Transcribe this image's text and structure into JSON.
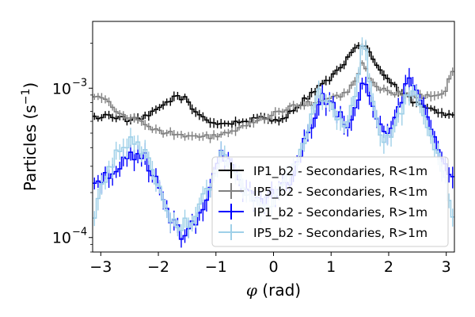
{
  "chart_data": {
    "type": "line",
    "xlabel": "$\\phi$ (rad)",
    "xlabel_display": {
      "symbol": "φ",
      "rest": " (rad)"
    },
    "ylabel": "Particles (s$^{-1}$)",
    "ylabel_display": {
      "base": "Particles (s",
      "sup": "−1",
      "close": ")"
    },
    "xlim": [
      -3.14159,
      3.14159
    ],
    "ylim": [
      8e-05,
      0.0028
    ],
    "yscale": "log",
    "grid": false,
    "legend_position": "lower-right",
    "x_ticks": [
      {
        "value": -3,
        "label": "−3"
      },
      {
        "value": -2,
        "label": "−2"
      },
      {
        "value": -1,
        "label": "−1"
      },
      {
        "value": 0,
        "label": "0"
      },
      {
        "value": 1,
        "label": "1"
      },
      {
        "value": 2,
        "label": "2"
      },
      {
        "value": 3,
        "label": "3"
      }
    ],
    "y_ticks": [
      {
        "value": 0.0001,
        "label": "10",
        "exp": "−4"
      },
      {
        "value": 0.001,
        "label": "10",
        "exp": "−3"
      }
    ],
    "n_bins": 100,
    "series": [
      {
        "name": "IP1_b2 - Secondaries, R<1m",
        "color": "#000000",
        "anchors": [
          [
            -3.14,
            0.00063
          ],
          [
            -2.9,
            0.00066
          ],
          [
            -2.7,
            0.00064
          ],
          [
            -2.5,
            0.00061
          ],
          [
            -2.3,
            0.00062
          ],
          [
            -2.1,
            0.00068
          ],
          [
            -1.9,
            0.00078
          ],
          [
            -1.7,
            0.00088
          ],
          [
            -1.55,
            0.00086
          ],
          [
            -1.4,
            0.00072
          ],
          [
            -1.2,
            0.00063
          ],
          [
            -1.0,
            0.00058
          ],
          [
            -0.8,
            0.00058
          ],
          [
            -0.5,
            0.0006
          ],
          [
            -0.2,
            0.00063
          ],
          [
            0.0,
            0.00061
          ],
          [
            0.2,
            0.00064
          ],
          [
            0.4,
            0.00075
          ],
          [
            0.6,
            0.00088
          ],
          [
            0.8,
            0.00103
          ],
          [
            1.0,
            0.00118
          ],
          [
            1.2,
            0.0014
          ],
          [
            1.35,
            0.0017
          ],
          [
            1.5,
            0.00195
          ],
          [
            1.6,
            0.00195
          ],
          [
            1.75,
            0.0015
          ],
          [
            1.95,
            0.00118
          ],
          [
            2.2,
            0.00094
          ],
          [
            2.5,
            0.00078
          ],
          [
            2.8,
            0.0007
          ],
          [
            3.0,
            0.00067
          ],
          [
            3.14,
            0.00069
          ]
        ]
      },
      {
        "name": "IP5_b2 - Secondaries, R<1m",
        "color": "#808080",
        "anchors": [
          [
            -3.14,
            0.0009
          ],
          [
            -2.95,
            0.00088
          ],
          [
            -2.8,
            0.00075
          ],
          [
            -2.6,
            0.00066
          ],
          [
            -2.4,
            0.00061
          ],
          [
            -2.2,
            0.00057
          ],
          [
            -2.0,
            0.00052
          ],
          [
            -1.8,
            0.0005
          ],
          [
            -1.6,
            0.00048
          ],
          [
            -1.4,
            0.00047
          ],
          [
            -1.2,
            0.00047
          ],
          [
            -1.0,
            0.00048
          ],
          [
            -0.8,
            0.0005
          ],
          [
            -0.5,
            0.00055
          ],
          [
            -0.2,
            0.00062
          ],
          [
            0.1,
            0.0007
          ],
          [
            0.4,
            0.00076
          ],
          [
            0.7,
            0.0008
          ],
          [
            0.9,
            0.00083
          ],
          [
            1.1,
            0.00088
          ],
          [
            1.3,
            0.00095
          ],
          [
            1.45,
            0.00118
          ],
          [
            1.55,
            0.00147
          ],
          [
            1.65,
            0.0012
          ],
          [
            1.8,
            0.00102
          ],
          [
            2.0,
            0.00095
          ],
          [
            2.3,
            0.0009
          ],
          [
            2.6,
            0.00088
          ],
          [
            2.85,
            0.00092
          ],
          [
            3.0,
            0.00095
          ],
          [
            3.05,
            0.00115
          ],
          [
            3.14,
            0.0013
          ]
        ]
      },
      {
        "name": "IP1_b2 - Secondaries, R>1m",
        "color": "#0000ff",
        "anchors": [
          [
            -3.14,
            0.00023
          ],
          [
            -3.0,
            0.00024
          ],
          [
            -2.8,
            0.00026
          ],
          [
            -2.6,
            0.00034
          ],
          [
            -2.4,
            0.00037
          ],
          [
            -2.2,
            0.00033
          ],
          [
            -2.0,
            0.00022
          ],
          [
            -1.8,
            0.00013
          ],
          [
            -1.6,
            0.000105
          ],
          [
            -1.4,
            0.00012
          ],
          [
            -1.2,
            0.00017
          ],
          [
            -1.0,
            0.00028
          ],
          [
            -0.9,
            0.00036
          ],
          [
            -0.8,
            0.00034
          ],
          [
            -0.6,
            0.00024
          ],
          [
            -0.4,
            0.00019
          ],
          [
            -0.2,
            0.00018
          ],
          [
            0.0,
            0.0002
          ],
          [
            0.2,
            0.00022
          ],
          [
            0.4,
            0.0003
          ],
          [
            0.6,
            0.0005
          ],
          [
            0.8,
            0.00085
          ],
          [
            1.0,
            0.00082
          ],
          [
            1.15,
            0.00065
          ],
          [
            1.3,
            0.00058
          ],
          [
            1.45,
            0.00075
          ],
          [
            1.55,
            0.00125
          ],
          [
            1.65,
            0.00088
          ],
          [
            1.8,
            0.00058
          ],
          [
            2.0,
            0.00055
          ],
          [
            2.2,
            0.00075
          ],
          [
            2.35,
            0.00115
          ],
          [
            2.5,
            0.00095
          ],
          [
            2.65,
            0.00065
          ],
          [
            2.8,
            0.00045
          ],
          [
            2.95,
            0.0003
          ],
          [
            3.14,
            0.00024
          ]
        ]
      },
      {
        "name": "IP5_b2 - Secondaries, R>1m",
        "color": "#9fd0e8",
        "anchors": [
          [
            -3.14,
            0.00011
          ],
          [
            -3.0,
            0.00022
          ],
          [
            -2.8,
            0.00032
          ],
          [
            -2.6,
            0.00042
          ],
          [
            -2.4,
            0.00045
          ],
          [
            -2.2,
            0.00035
          ],
          [
            -2.0,
            0.00022
          ],
          [
            -1.8,
            0.00014
          ],
          [
            -1.6,
            0.00012
          ],
          [
            -1.4,
            0.00013
          ],
          [
            -1.2,
            0.00019
          ],
          [
            -1.0,
            0.00027
          ],
          [
            -0.9,
            0.00036
          ],
          [
            -0.8,
            0.00032
          ],
          [
            -0.6,
            0.00025
          ],
          [
            -0.4,
            0.00019
          ],
          [
            -0.2,
            0.00016
          ],
          [
            0.0,
            0.00018
          ],
          [
            0.2,
            0.00024
          ],
          [
            0.4,
            0.00032
          ],
          [
            0.6,
            0.00055
          ],
          [
            0.8,
            0.00095
          ],
          [
            1.0,
            0.00078
          ],
          [
            1.2,
            0.00058
          ],
          [
            1.4,
            0.00078
          ],
          [
            1.5,
            0.0015
          ],
          [
            1.58,
            0.0022
          ],
          [
            1.7,
            0.00082
          ],
          [
            1.85,
            0.00048
          ],
          [
            2.0,
            0.00048
          ],
          [
            2.15,
            0.0006
          ],
          [
            2.3,
            0.00088
          ],
          [
            2.45,
            0.0009
          ],
          [
            2.6,
            0.00065
          ],
          [
            2.8,
            0.00042
          ],
          [
            3.0,
            0.00025
          ],
          [
            3.14,
            0.00012
          ]
        ]
      }
    ]
  }
}
